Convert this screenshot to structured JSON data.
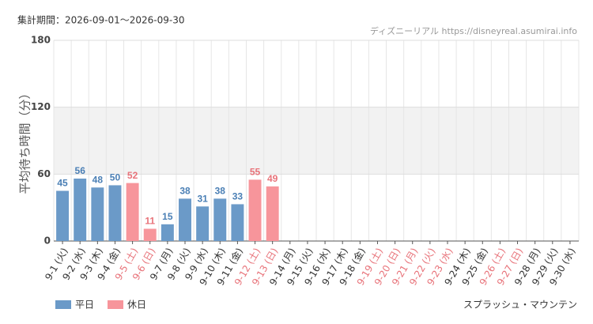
{
  "chart_data": {
    "type": "bar",
    "title": "集計期間：2026-09-01～2026-09-30",
    "source": "ディズニーリアル https://disneyreal.asumirai.info",
    "ylabel": "平均待ち時間（分）",
    "footer": "スプラッシュ・マウンテン",
    "categories": [
      "9-1 (火)",
      "9-2 (水)",
      "9-3 (木)",
      "9-4 (金)",
      "9-5 (土)",
      "9-6 (日)",
      "9-7 (月)",
      "9-8 (火)",
      "9-9 (水)",
      "9-10 (木)",
      "9-11 (金)",
      "9-12 (土)",
      "9-13 (日)",
      "9-14 (月)",
      "9-15 (火)",
      "9-16 (水)",
      "9-17 (木)",
      "9-18 (金)",
      "9-19 (土)",
      "9-20 (日)",
      "9-21 (月)",
      "9-22 (火)",
      "9-23 (水)",
      "9-24 (木)",
      "9-25 (金)",
      "9-26 (土)",
      "9-27 (日)",
      "9-28 (月)",
      "9-29 (火)",
      "9-30 (水)"
    ],
    "category_colors": [
      "#333",
      "#333",
      "#333",
      "#333",
      "#e8737a",
      "#e8737a",
      "#333",
      "#333",
      "#333",
      "#333",
      "#333",
      "#e8737a",
      "#e8737a",
      "#333",
      "#333",
      "#333",
      "#333",
      "#333",
      "#e8737a",
      "#e8737a",
      "#e8737a",
      "#e8737a",
      "#e8737a",
      "#333",
      "#333",
      "#e8737a",
      "#e8737a",
      "#333",
      "#333",
      "#333"
    ],
    "series": [
      {
        "name": "平日",
        "color": "#6b9ac8",
        "label_color": "#4a7fb5",
        "values": [
          45,
          56,
          48,
          50,
          null,
          null,
          15,
          38,
          31,
          38,
          33,
          null,
          null,
          null,
          null,
          null,
          null,
          null,
          null,
          null,
          null,
          null,
          null,
          null,
          null,
          null,
          null,
          null,
          null,
          null
        ]
      },
      {
        "name": "休日",
        "color": "#f7959b",
        "label_color": "#e8737a",
        "values": [
          null,
          null,
          null,
          null,
          52,
          11,
          null,
          null,
          null,
          null,
          null,
          55,
          49,
          null,
          null,
          null,
          null,
          null,
          null,
          null,
          null,
          null,
          null,
          null,
          null,
          null,
          null,
          null,
          null,
          null
        ]
      }
    ],
    "ylim": [
      0,
      180
    ],
    "yticks": [
      0,
      60,
      120,
      180
    ],
    "shaded_band": [
      60,
      120
    ],
    "grid": true
  }
}
